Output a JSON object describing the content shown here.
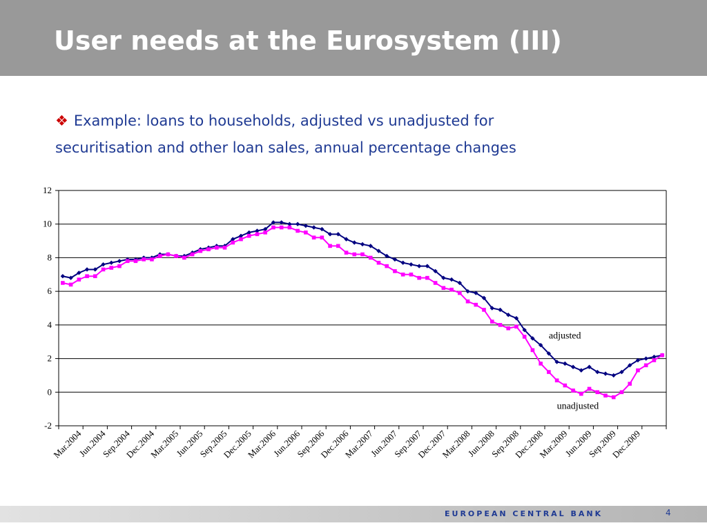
{
  "slide": {
    "title": "User needs at the Eurosystem (III)",
    "bullet_marker": "❖",
    "bullet_text": "Example: loans to households, adjusted vs unadjusted for securitisation and other loan sales, annual percentage changes",
    "footer_brand": "EUROPEAN CENTRAL BANK",
    "page_number": "4"
  },
  "colors": {
    "header_bg": "#999999",
    "text_blue": "#1f3a93",
    "adjusted_series": "#000080",
    "unadjusted_series": "#ff00ff"
  },
  "chart_data": {
    "type": "line",
    "title": "",
    "xlabel": "",
    "ylabel": "",
    "ylim": [
      -2,
      12
    ],
    "yticks": [
      -2,
      0,
      2,
      4,
      6,
      8,
      10,
      12
    ],
    "grid": "horizontal",
    "x": [
      "Jan.2004",
      "Feb.2004",
      "Mar.2004",
      "Apr.2004",
      "May.2004",
      "Jun.2004",
      "Jul.2004",
      "Aug.2004",
      "Sep.2004",
      "Oct.2004",
      "Nov.2004",
      "Dec.2004",
      "Jan.2005",
      "Feb.2005",
      "Mar.2005",
      "Apr.2005",
      "May.2005",
      "Jun.2005",
      "Jul.2005",
      "Aug.2005",
      "Sep.2005",
      "Oct.2005",
      "Nov.2005",
      "Dec.2005",
      "Jan.2006",
      "Feb.2006",
      "Mar.2006",
      "Apr.2006",
      "May.2006",
      "Jun.2006",
      "Jul.2006",
      "Aug.2006",
      "Sep.2006",
      "Oct.2006",
      "Nov.2006",
      "Dec.2006",
      "Jan.2007",
      "Feb.2007",
      "Mar.2007",
      "Apr.2007",
      "May.2007",
      "Jun.2007",
      "Jul.2007",
      "Aug.2007",
      "Sep.2007",
      "Oct.2007",
      "Nov.2007",
      "Dec.2007",
      "Jan.2008",
      "Feb.2008",
      "Mar.2008",
      "Apr.2008",
      "May.2008",
      "Jun.2008",
      "Jul.2008",
      "Aug.2008",
      "Sep.2008",
      "Oct.2008",
      "Nov.2008",
      "Dec.2008",
      "Jan.2009",
      "Feb.2009",
      "Mar.2009",
      "Apr.2009",
      "May.2009",
      "Jun.2009",
      "Jul.2009",
      "Aug.2009",
      "Sep.2009",
      "Oct.2009",
      "Nov.2009",
      "Dec.2009",
      "Jan.2010",
      "Feb.2010",
      "Mar.2010"
    ],
    "tick_labels": [
      "Mar.2004",
      "Jun.2004",
      "Sep.2004",
      "Dec.2004",
      "Mar.2005",
      "Jun.2005",
      "Sep.2005",
      "Dec.2005",
      "Mar.2006",
      "Jun.2006",
      "Sep.2006",
      "Dec.2006",
      "Mar.2007",
      "Jun.2007",
      "Sep.2007",
      "Dec.2007",
      "Mar.2008",
      "Jun.2008",
      "Sep.2008",
      "Dec.2008",
      "Mar.2009",
      "Jun.2009",
      "Sep.2009",
      "Dec.2009"
    ],
    "series": [
      {
        "name": "adjusted",
        "color": "#000080",
        "marker": "diamond",
        "values": [
          6.9,
          6.8,
          7.1,
          7.3,
          7.3,
          7.6,
          7.7,
          7.8,
          7.9,
          7.9,
          8.0,
          8.0,
          8.2,
          8.2,
          8.1,
          8.1,
          8.3,
          8.5,
          8.6,
          8.7,
          8.7,
          9.1,
          9.3,
          9.5,
          9.6,
          9.7,
          10.1,
          10.1,
          10.0,
          10.0,
          9.9,
          9.8,
          9.7,
          9.4,
          9.4,
          9.1,
          8.9,
          8.8,
          8.7,
          8.4,
          8.1,
          7.9,
          7.7,
          7.6,
          7.5,
          7.5,
          7.2,
          6.8,
          6.7,
          6.5,
          6.0,
          5.9,
          5.6,
          5.0,
          4.9,
          4.6,
          4.4,
          3.7,
          3.2,
          2.8,
          2.3,
          1.8,
          1.7,
          1.5,
          1.3,
          1.5,
          1.2,
          1.1,
          1.0,
          1.2,
          1.6,
          1.9,
          2.0,
          2.1,
          2.2
        ]
      },
      {
        "name": "unadjusted",
        "color": "#ff00ff",
        "marker": "square",
        "values": [
          6.5,
          6.4,
          6.7,
          6.9,
          6.9,
          7.3,
          7.4,
          7.5,
          7.8,
          7.8,
          7.9,
          7.9,
          8.1,
          8.2,
          8.1,
          8.0,
          8.2,
          8.4,
          8.5,
          8.6,
          8.6,
          8.9,
          9.1,
          9.3,
          9.4,
          9.5,
          9.8,
          9.8,
          9.8,
          9.6,
          9.5,
          9.2,
          9.2,
          8.7,
          8.7,
          8.3,
          8.2,
          8.2,
          8.0,
          7.7,
          7.5,
          7.2,
          7.0,
          7.0,
          6.8,
          6.8,
          6.5,
          6.2,
          6.1,
          5.9,
          5.4,
          5.2,
          4.9,
          4.2,
          4.0,
          3.8,
          3.9,
          3.3,
          2.5,
          1.7,
          1.2,
          0.7,
          0.4,
          0.1,
          -0.1,
          0.2,
          0.0,
          -0.2,
          -0.3,
          0.0,
          0.5,
          1.3,
          1.6,
          1.9,
          2.2
        ]
      }
    ],
    "annotations": [
      {
        "text": "adjusted",
        "x": "Jan.2009",
        "y": 3.2
      },
      {
        "text": "unadjusted",
        "x": "Feb.2009",
        "y": -1.0
      }
    ]
  }
}
